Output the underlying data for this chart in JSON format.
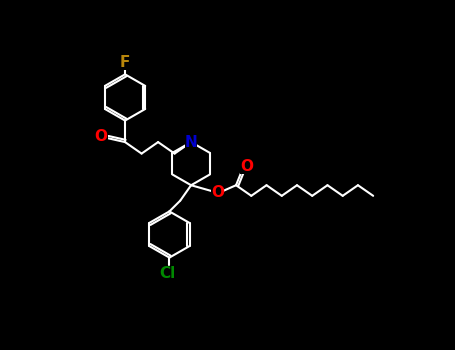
{
  "background": "#000000",
  "bond_color": "#ffffff",
  "bond_width": 1.5,
  "atom_F_color": "#b8860b",
  "atom_O_color": "#ff0000",
  "atom_N_color": "#0000cd",
  "atom_Cl_color": "#008800",
  "figsize": [
    4.55,
    3.5
  ],
  "dpi": 100,
  "xlim": [
    0,
    455
  ],
  "ylim": [
    0,
    350
  ]
}
